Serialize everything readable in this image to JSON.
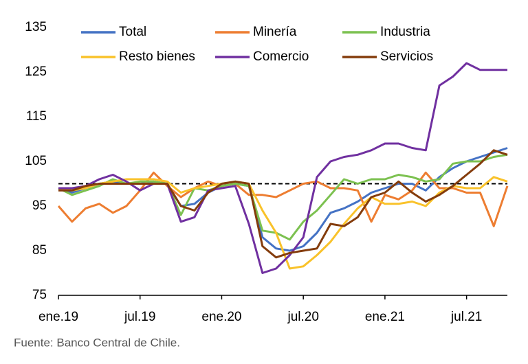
{
  "chart_data": {
    "type": "line",
    "categories": [
      "ene.19",
      null,
      null,
      null,
      null,
      null,
      "jul.19",
      null,
      null,
      null,
      null,
      null,
      "ene.20",
      null,
      null,
      null,
      null,
      null,
      "jul.20",
      null,
      null,
      null,
      null,
      null,
      "ene.21",
      null,
      null,
      null,
      null,
      null,
      "jul.21",
      null,
      null,
      null
    ],
    "series": [
      {
        "name": "Total",
        "color": "#4472c4",
        "values": [
          99,
          98,
          99,
          100,
          100.5,
          100,
          100,
          100.5,
          100,
          95,
          95.5,
          98,
          99.5,
          100,
          99.5,
          88,
          85.5,
          85,
          86,
          89,
          93.5,
          94.5,
          96,
          98,
          99,
          100,
          100,
          98.5,
          101.5,
          103.5,
          105,
          106,
          107,
          108
        ]
      },
      {
        "name": "Minería",
        "color": "#ed7d31",
        "values": [
          95,
          91.5,
          94.5,
          95.5,
          93.5,
          95,
          98.5,
          102.5,
          99.5,
          97,
          99,
          100.5,
          99.5,
          100,
          97.5,
          97.5,
          97,
          98.5,
          100,
          100.5,
          99,
          99,
          98.5,
          91.5,
          97.5,
          96.5,
          98.5,
          102.5,
          99,
          99,
          98,
          98,
          90.5,
          99.5
        ]
      },
      {
        "name": "Industria",
        "color": "#7cc150",
        "values": [
          99,
          97.5,
          98.5,
          99.5,
          101,
          100,
          100.5,
          100.5,
          100,
          93,
          99,
          98.5,
          99.5,
          100,
          99.5,
          89.5,
          89,
          87.5,
          91.5,
          94,
          97.5,
          101,
          100,
          101,
          101,
          102,
          101.5,
          100.5,
          101,
          104.5,
          105,
          105,
          106,
          106.5
        ]
      },
      {
        "name": "Resto bienes",
        "color": "#f9c22a",
        "values": [
          99,
          98.5,
          99,
          100,
          100.5,
          101,
          101,
          101,
          100.5,
          98,
          99,
          99.5,
          100,
          100.5,
          100,
          94,
          89,
          81,
          81.5,
          84,
          87,
          91,
          94.5,
          97,
          95.5,
          95.5,
          96,
          95,
          98,
          99.5,
          99,
          99,
          101.5,
          100.5
        ]
      },
      {
        "name": "Comercio",
        "color": "#7030a0",
        "values": [
          99,
          99,
          99.5,
          101,
          102,
          100.5,
          98.5,
          100,
          100,
          91.5,
          92.5,
          98.5,
          99,
          99.5,
          91,
          80,
          81,
          84,
          88,
          101.5,
          105,
          106,
          106.5,
          107.5,
          109,
          109,
          108,
          107.5,
          122,
          124,
          127,
          125.5,
          125.5,
          125.5
        ]
      },
      {
        "name": "Servicios",
        "color": "#843c0c",
        "values": [
          98.5,
          98.5,
          99.5,
          100,
          100,
          100,
          100,
          100,
          100,
          95,
          94,
          98,
          100,
          100.5,
          100,
          86,
          83.5,
          84.5,
          85,
          85.5,
          91,
          90.5,
          92.5,
          97,
          98,
          100.5,
          98,
          96,
          97.5,
          99.5,
          102,
          104.5,
          107.5,
          106.5
        ]
      }
    ],
    "ylim": [
      75,
      135
    ],
    "yticks": [
      75,
      85,
      95,
      105,
      115,
      125,
      135
    ],
    "hline": 100,
    "legend": "top",
    "grid": false,
    "source": "Fuente: Banco Central de Chile."
  }
}
